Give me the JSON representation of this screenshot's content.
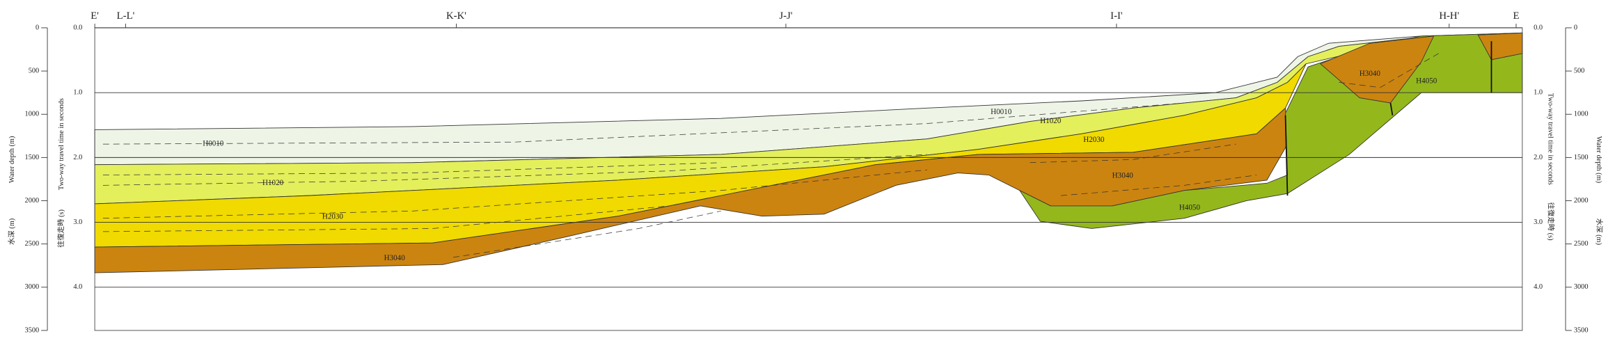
{
  "section_labels": [
    "E'",
    "L-L'",
    "K-K'",
    "J-J'",
    "I-I'",
    "H-H'",
    "E"
  ],
  "depth_axis": {
    "title_ja": "水深 (m)",
    "title_en": "Water depth (m)",
    "ticks": [
      0,
      500,
      1000,
      1500,
      2000,
      2500,
      3000,
      3500
    ]
  },
  "twt_axis": {
    "title_ja": "往復走時 (s)",
    "title_en": "Two-way travel time in seconds",
    "ticks": [
      {
        "value": 0,
        "label": "0.0"
      },
      {
        "value": 1,
        "label": "1.0"
      },
      {
        "value": 2,
        "label": "2.0"
      },
      {
        "value": 3,
        "label": "3.0"
      },
      {
        "value": 4,
        "label": "4.0"
      }
    ]
  },
  "units": [
    "H0010",
    "H1020",
    "H2030",
    "H3040",
    "H0010",
    "H1020",
    "H2030",
    "H3040",
    "H4050",
    "H3040",
    "H4050"
  ]
}
